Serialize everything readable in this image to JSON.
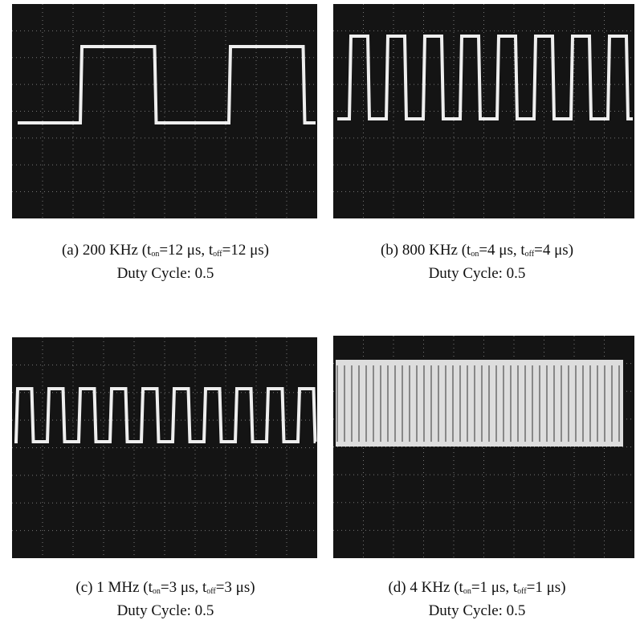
{
  "panels": [
    {
      "caption_line1": [
        "(a)  200  KHz  (t",
        "on",
        "=12  μs,  t",
        "off",
        "=12  μs)"
      ],
      "caption_line2": "Duty  Cycle:  0.5"
    },
    {
      "caption_line1": [
        "(b)  800  KHz  (t",
        "on",
        "=4  μs,  t",
        "off",
        "=4  μs)"
      ],
      "caption_line2": "Duty  Cycle:  0.5"
    },
    {
      "caption_line1": [
        "(c)  1  MHz  (t",
        "on",
        "=3  μs,  t",
        "off",
        "=3  μs)"
      ],
      "caption_line2": "Duty  Cycle:  0.5"
    },
    {
      "caption_line1": [
        "(d)  4  KHz  (t",
        "on",
        "=1  μs,  t",
        "off",
        "=1  μs)"
      ],
      "caption_line2": "Duty  Cycle:  0.5"
    }
  ]
}
